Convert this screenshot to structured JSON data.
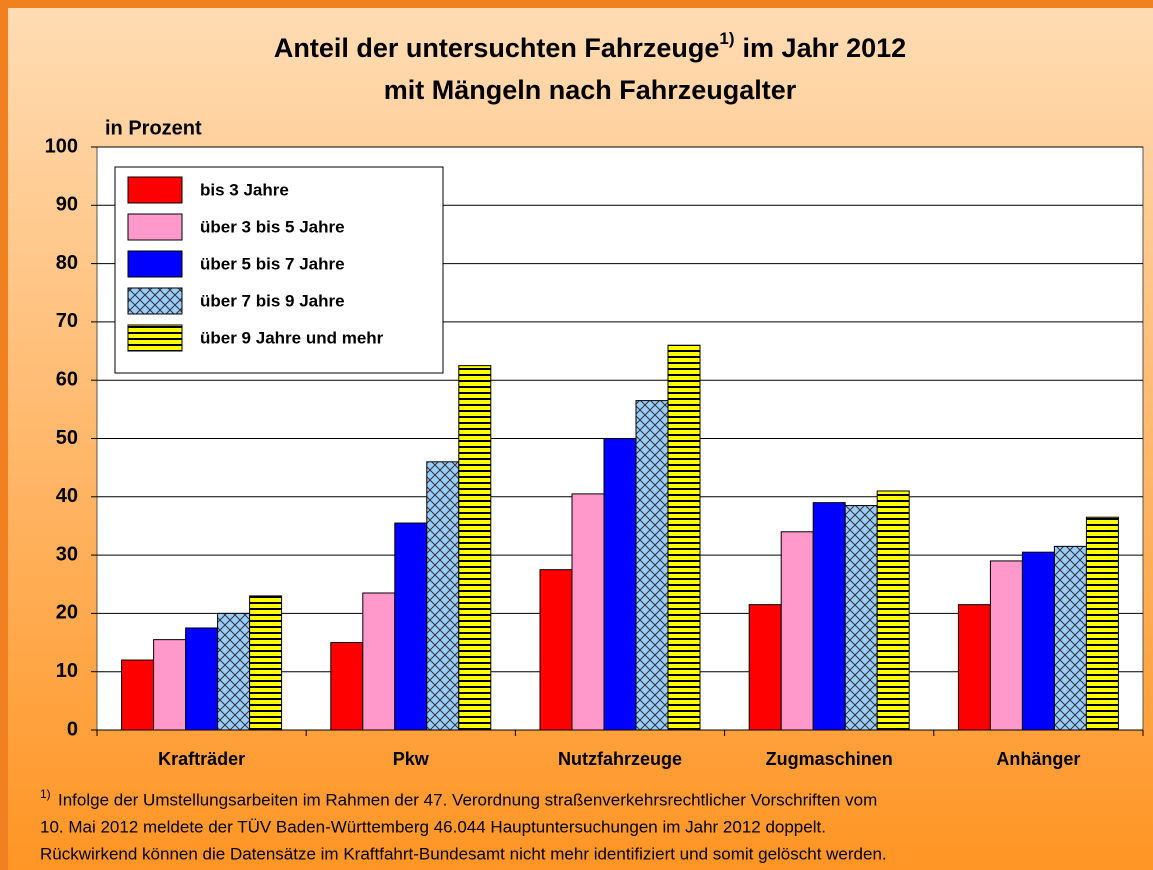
{
  "chart_data": {
    "type": "bar",
    "title": {
      "part1": "Anteil der untersuchten Fahrzeuge",
      "part2": "im Jahr 2012",
      "line2": "mit Mängeln nach Fahrzeugalter"
    },
    "footnote_mark": "1)",
    "y_label": "in Prozent",
    "categories": [
      "Krafträder",
      "Pkw",
      "Nutzfahrzeuge",
      "Zugmaschinen",
      "Anhänger"
    ],
    "series": [
      {
        "name": "bis 3 Jahre",
        "color": "#ff0000",
        "pattern": "solid",
        "values": [
          12,
          15,
          27.5,
          21.5,
          21.5
        ]
      },
      {
        "name": "über 3 bis 5 Jahre",
        "color": "#ff99cc",
        "pattern": "solid",
        "values": [
          15.5,
          23.5,
          40.5,
          34,
          29
        ]
      },
      {
        "name": "über 5 bis 7 Jahre",
        "color": "#0000ff",
        "pattern": "solid",
        "values": [
          17.5,
          35.5,
          50,
          39,
          30.5
        ]
      },
      {
        "name": "über 7 bis 9 Jahre",
        "color": "#99ccff",
        "pattern": "crosshatch",
        "values": [
          20,
          46,
          56.5,
          38.5,
          31.5
        ]
      },
      {
        "name": "über 9 Jahre und mehr",
        "color": "#ffff00",
        "pattern": "horizontal-lines",
        "values": [
          23,
          62.5,
          66,
          41,
          36.5
        ]
      }
    ],
    "ylim": [
      0,
      100
    ],
    "yticks": [
      0,
      10,
      20,
      30,
      40,
      50,
      60,
      70,
      80,
      90,
      100
    ],
    "grid": true,
    "legend": "top-left",
    "footnote": [
      "Infolge der Umstellungsarbeiten im Rahmen der 47. Verordnung straßenverkehrsrechtlicher Vorschriften vom",
      "10. Mai 2012 meldete der TÜV Baden-Württemberg 46.044 Hauptuntersuchungen im Jahr 2012 doppelt.",
      "Rückwirkend können die Datensätze im Kraftfahrt-Bundesamt nicht mehr identifiziert und somit gelöscht werden."
    ]
  }
}
